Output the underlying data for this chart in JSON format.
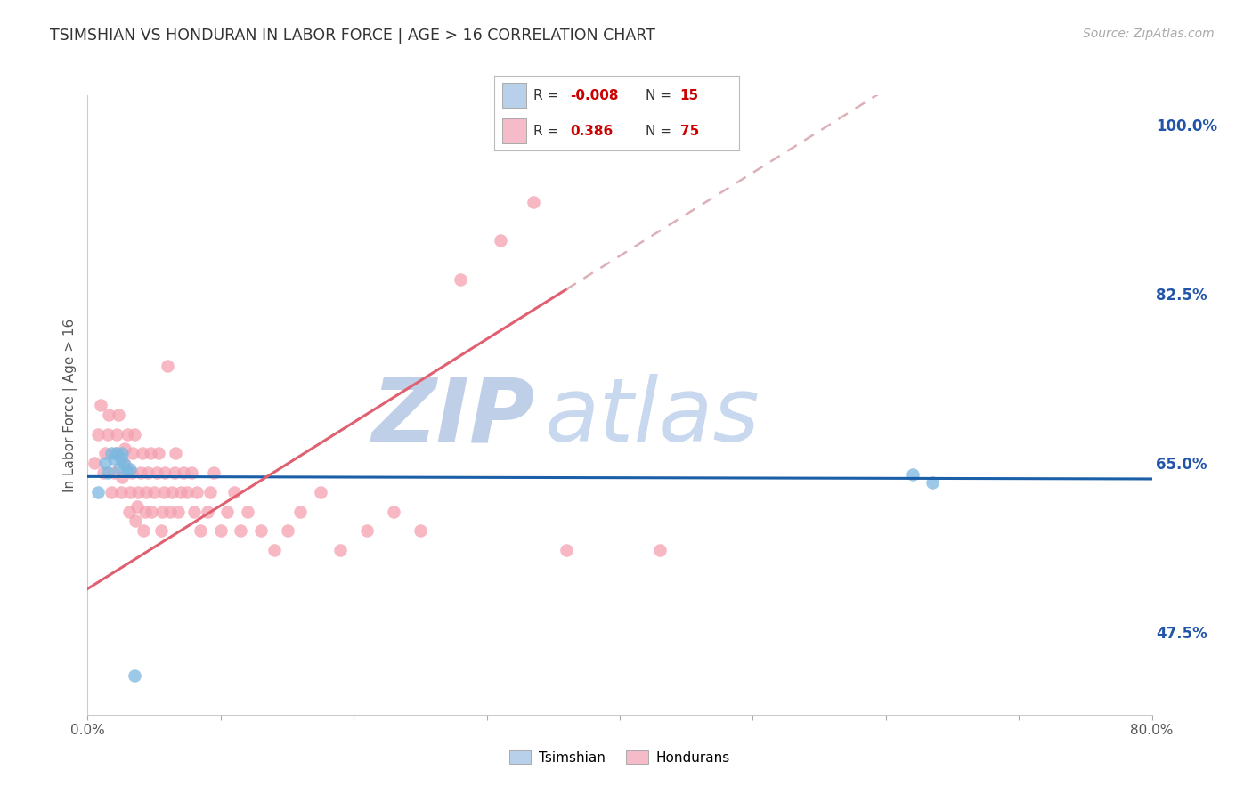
{
  "title": "TSIMSHIAN VS HONDURAN IN LABOR FORCE | AGE > 16 CORRELATION CHART",
  "source_text": "Source: ZipAtlas.com",
  "ylabel": "In Labor Force | Age > 16",
  "xlim": [
    0.0,
    0.8
  ],
  "ylim": [
    0.39,
    1.03
  ],
  "xtick_labels": [
    "0.0%",
    "",
    "",
    "",
    "",
    "",
    "",
    "",
    "80.0%"
  ],
  "xtick_vals": [
    0.0,
    0.1,
    0.2,
    0.3,
    0.4,
    0.5,
    0.6,
    0.7,
    0.8
  ],
  "ytick_labels": [
    "47.5%",
    "65.0%",
    "82.5%",
    "100.0%"
  ],
  "ytick_vals": [
    0.475,
    0.65,
    0.825,
    1.0
  ],
  "background_color": "#ffffff",
  "grid_color": "#cccccc",
  "title_color": "#333333",
  "source_color": "#aaaaaa",
  "watermark_zip": "ZIP",
  "watermark_atlas": "atlas",
  "watermark_color": "#c8d8ee",
  "legend_box_color_tsimshian": "#b8d0ea",
  "legend_box_color_honduran": "#f5bbc8",
  "tsimshian_color": "#7bb8e0",
  "honduran_color": "#f5a0b0",
  "trend_tsimshian_color": "#1a5fa8",
  "trend_honduran_color": "#e06070",
  "trend_honduran_dash_color": "#ddb0b8",
  "tsimshian_x": [
    0.008,
    0.013,
    0.015,
    0.018,
    0.02,
    0.022,
    0.024,
    0.025,
    0.026,
    0.028,
    0.03,
    0.032,
    0.035,
    0.62,
    0.635
  ],
  "tsimshian_y": [
    0.62,
    0.65,
    0.64,
    0.66,
    0.655,
    0.66,
    0.645,
    0.655,
    0.66,
    0.648,
    0.642,
    0.644,
    0.43,
    0.638,
    0.63
  ],
  "honduran_x": [
    0.005,
    0.008,
    0.01,
    0.012,
    0.013,
    0.015,
    0.016,
    0.018,
    0.02,
    0.021,
    0.022,
    0.023,
    0.025,
    0.026,
    0.027,
    0.028,
    0.03,
    0.031,
    0.032,
    0.033,
    0.034,
    0.035,
    0.036,
    0.037,
    0.038,
    0.04,
    0.041,
    0.042,
    0.043,
    0.044,
    0.045,
    0.047,
    0.048,
    0.05,
    0.052,
    0.053,
    0.055,
    0.056,
    0.057,
    0.058,
    0.06,
    0.062,
    0.063,
    0.065,
    0.066,
    0.068,
    0.07,
    0.072,
    0.075,
    0.078,
    0.08,
    0.082,
    0.085,
    0.09,
    0.092,
    0.095,
    0.1,
    0.105,
    0.11,
    0.115,
    0.12,
    0.13,
    0.14,
    0.15,
    0.16,
    0.175,
    0.19,
    0.21,
    0.23,
    0.25,
    0.28,
    0.31,
    0.335,
    0.36,
    0.43
  ],
  "honduran_y": [
    0.65,
    0.68,
    0.71,
    0.64,
    0.66,
    0.68,
    0.7,
    0.62,
    0.64,
    0.66,
    0.68,
    0.7,
    0.62,
    0.635,
    0.65,
    0.665,
    0.68,
    0.6,
    0.62,
    0.64,
    0.66,
    0.68,
    0.59,
    0.605,
    0.62,
    0.64,
    0.66,
    0.58,
    0.6,
    0.62,
    0.64,
    0.66,
    0.6,
    0.62,
    0.64,
    0.66,
    0.58,
    0.6,
    0.62,
    0.64,
    0.75,
    0.6,
    0.62,
    0.64,
    0.66,
    0.6,
    0.62,
    0.64,
    0.62,
    0.64,
    0.6,
    0.62,
    0.58,
    0.6,
    0.62,
    0.64,
    0.58,
    0.6,
    0.62,
    0.58,
    0.6,
    0.58,
    0.56,
    0.58,
    0.6,
    0.62,
    0.56,
    0.58,
    0.6,
    0.58,
    0.84,
    0.88,
    0.92,
    0.56,
    0.56
  ],
  "trend_honduran_solid_end": 0.36,
  "trend_tsimshian_intercept": 0.636,
  "trend_tsimshian_slope": -0.003,
  "trend_honduran_intercept": 0.52,
  "trend_honduran_slope": 0.86
}
